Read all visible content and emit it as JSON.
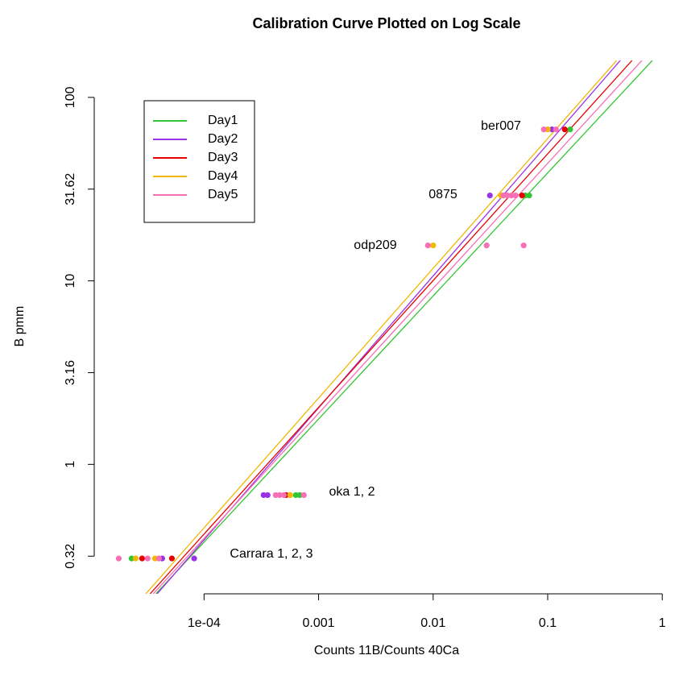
{
  "chart_data": {
    "type": "scatter",
    "title": "Calibration Curve Plotted on Log Scale",
    "x_label": "Counts 11B/Counts 40Ca",
    "y_label": "B pmm",
    "log_x": true,
    "log_y": true,
    "xlim": [
      1.1e-05,
      1.27
    ],
    "ylim": [
      0.197,
      159
    ],
    "xticks": [
      {
        "value": 0.0001,
        "label": "1e-04"
      },
      0.001,
      0.01,
      0.1,
      1
    ],
    "yticks": [
      {
        "value": 0.316,
        "label": "0.32"
      },
      1,
      3.16,
      10,
      31.62,
      100
    ],
    "legend": "top-left",
    "series": [
      {
        "name": "Day1",
        "color": "#33c633",
        "x": [
          2.33e-05,
          0.000633,
          0.000686,
          0.0637,
          0.069,
          0.157
        ],
        "values": [
          0.307,
          0.68,
          0.68,
          29.2,
          29.2,
          66.9
        ],
        "fit": {
          "x": [
            3.8e-05,
            0.82
          ],
          "values": [
            0.197,
            159
          ]
        }
      },
      {
        "name": "Day2",
        "color": "#9932e6",
        "x": [
          4.31e-05,
          8.2e-05,
          0.000331,
          0.000359,
          0.0313,
          0.109
        ],
        "values": [
          0.307,
          0.307,
          0.68,
          0.68,
          29.2,
          66.9
        ],
        "fit": {
          "x": [
            3.9e-05,
            0.43
          ],
          "values": [
            0.197,
            159
          ]
        }
      },
      {
        "name": "Day3",
        "color": "#e60000",
        "x": [
          2.88e-05,
          5.24e-05,
          0.000521,
          0.0597,
          0.141
        ],
        "values": [
          0.307,
          0.307,
          0.68,
          29.2,
          66.9
        ],
        "fit": {
          "x": [
            3.38e-05,
            0.545
          ],
          "values": [
            0.197,
            159
          ]
        }
      },
      {
        "name": "Day4",
        "color": "#f0b800",
        "x": [
          2.53e-05,
          3.73e-05,
          0.000565,
          0.01,
          0.0392,
          0.1
        ],
        "values": [
          0.307,
          0.307,
          0.68,
          15.6,
          29.2,
          66.9
        ],
        "fit": {
          "x": [
            3.1e-05,
            0.4
          ],
          "values": [
            0.197,
            159
          ]
        }
      },
      {
        "name": "Day5",
        "color": "#f76fb4",
        "x": [
          1.8e-05,
          3.22e-05,
          4.04e-05,
          0.000422,
          0.000458,
          0.000497,
          0.000744,
          0.009,
          0.0293,
          0.0617,
          0.0411,
          0.0446,
          0.0483,
          0.0525,
          0.0925,
          0.118
        ],
        "values": [
          0.307,
          0.307,
          0.307,
          0.68,
          0.68,
          0.68,
          0.68,
          15.6,
          15.6,
          15.6,
          29.2,
          29.2,
          29.2,
          29.2,
          66.9,
          66.9
        ],
        "fit": {
          "x": [
            3.6e-05,
            0.665
          ],
          "values": [
            0.197,
            159
          ]
        }
      }
    ],
    "annotations": [
      "ber007",
      "0875",
      "odp209",
      "oka 1, 2",
      "Carrara 1, 2, 3"
    ]
  }
}
